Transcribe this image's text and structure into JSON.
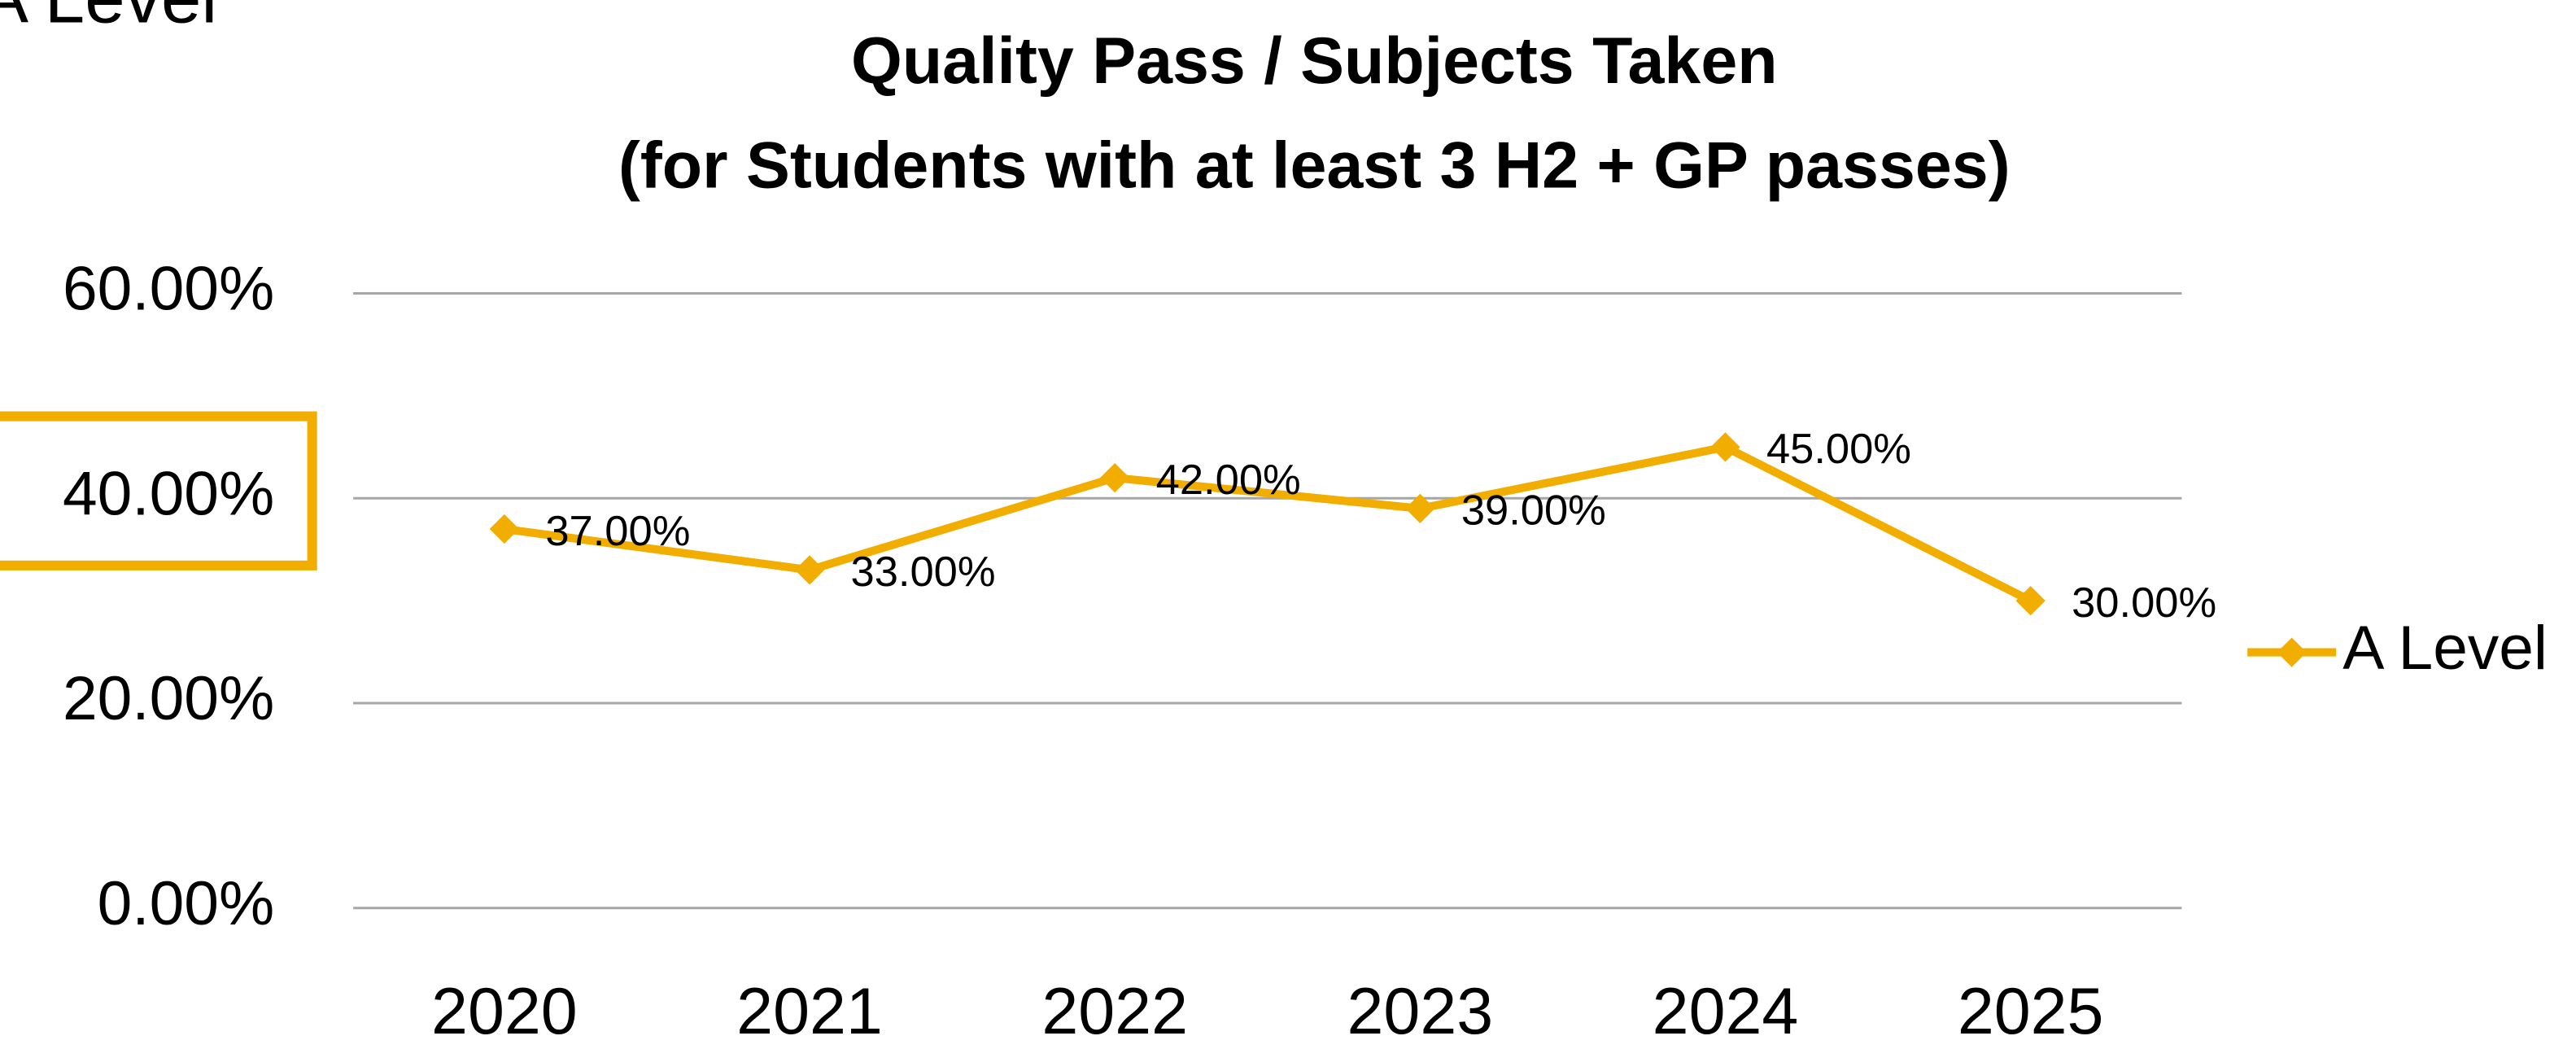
{
  "corner_text": "A Level",
  "chart_data": {
    "type": "line",
    "title": "Quality Pass / Subjects Taken",
    "subtitle": "(for Students with at least 3 H2 + GP passes)",
    "categories": [
      "2020",
      "2021",
      "2022",
      "2023",
      "2024",
      "2025"
    ],
    "series": [
      {
        "name": "A Level",
        "color": "#f2ae00",
        "values": [
          37,
          33,
          42,
          39,
          45,
          30
        ],
        "value_labels": [
          "37.00%",
          "33.00%",
          "42.00%",
          "39.00%",
          "45.00%",
          "30.00%"
        ]
      }
    ],
    "ylim": [
      0,
      60
    ],
    "yticks": [
      {
        "value": 0,
        "label": "0.00%"
      },
      {
        "value": 20,
        "label": "20.00%"
      },
      {
        "value": 40,
        "label": "40.00%"
      },
      {
        "value": 60,
        "label": "60.00%"
      }
    ],
    "grid": true,
    "legend": "right"
  }
}
